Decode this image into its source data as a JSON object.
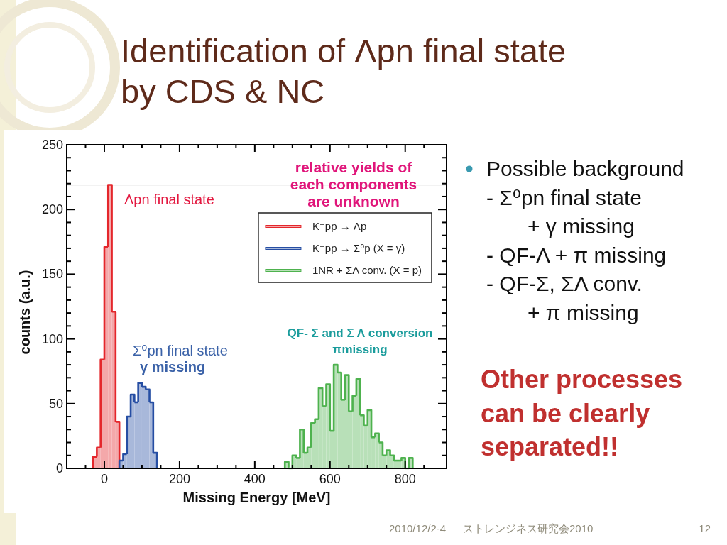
{
  "chart_data": {
    "type": "histogram",
    "title": "Identification of Λpn final state\nby CDS & NC",
    "xlabel": "Missing Energy [MeV]",
    "ylabel": "counts (a.u.)",
    "xlim": [
      -100,
      910
    ],
    "xticks": [
      {
        "value": -50,
        "label": null
      },
      0,
      {
        "value": 50,
        "label": null
      },
      {
        "value": 100,
        "label": null
      },
      {
        "value": 150,
        "label": null
      },
      200,
      {
        "value": 250,
        "label": null
      },
      {
        "value": 300,
        "label": null
      },
      {
        "value": 350,
        "label": null
      },
      400,
      {
        "value": 450,
        "label": null
      },
      {
        "value": 500,
        "label": null
      },
      {
        "value": 550,
        "label": null
      },
      600,
      {
        "value": 650,
        "label": null
      },
      {
        "value": 700,
        "label": null
      },
      {
        "value": 750,
        "label": null
      },
      800,
      {
        "value": 850,
        "label": null
      }
    ],
    "ylim": [
      0,
      250
    ],
    "yticks": [
      0,
      {
        "value": 10,
        "label": null
      },
      {
        "value": 20,
        "label": null
      },
      {
        "value": 30,
        "label": null
      },
      {
        "value": 40,
        "label": null
      },
      50,
      {
        "value": 60,
        "label": null
      },
      {
        "value": 70,
        "label": null
      },
      {
        "value": 80,
        "label": null
      },
      {
        "value": 90,
        "label": null
      },
      100,
      {
        "value": 110,
        "label": null
      },
      {
        "value": 120,
        "label": null
      },
      {
        "value": 130,
        "label": null
      },
      {
        "value": 140,
        "label": null
      },
      150,
      {
        "value": 160,
        "label": null
      },
      {
        "value": 170,
        "label": null
      },
      {
        "value": 180,
        "label": null
      },
      {
        "value": 190,
        "label": null
      },
      200,
      {
        "value": 210,
        "label": null
      },
      {
        "value": 220,
        "label": null
      },
      {
        "value": 230,
        "label": null
      },
      {
        "value": 240,
        "label": null
      },
      250
    ],
    "bins": [
      -30,
      -20,
      -10,
      0,
      10,
      20,
      30,
      40,
      50,
      60,
      70,
      80,
      90,
      100,
      110,
      120,
      130,
      140,
      480,
      490,
      500,
      510,
      520,
      530,
      540,
      550,
      560,
      570,
      580,
      590,
      600,
      610,
      620,
      630,
      640,
      650,
      660,
      670,
      680,
      690,
      700,
      710,
      720,
      730,
      740,
      750,
      760,
      770,
      780,
      790,
      800,
      810,
      820
    ],
    "series": [
      {
        "name": "K⁻pp → Λp",
        "color": "#f4a8aa",
        "values": [
          9,
          16,
          84,
          171,
          219,
          121,
          36,
          null,
          null,
          null,
          null,
          null,
          null,
          null,
          null,
          null,
          null,
          null,
          null,
          null,
          null,
          null,
          null,
          null,
          null,
          null,
          null,
          null,
          null,
          null,
          null,
          null,
          null,
          null,
          null,
          null,
          null,
          null,
          null,
          null,
          null,
          null,
          null,
          null,
          null,
          null,
          null,
          null,
          null,
          null,
          null,
          null
        ]
      },
      {
        "name": "K⁻pp → Σ⁰p (X = γ)",
        "color": "#a8b8da",
        "values": [
          null,
          null,
          null,
          null,
          null,
          null,
          null,
          6,
          11,
          40,
          57,
          51,
          66,
          63,
          61,
          51,
          12,
          null,
          null,
          null,
          null,
          null,
          null,
          null,
          null,
          null,
          null,
          null,
          null,
          null,
          null,
          null,
          null,
          null,
          null,
          null,
          null,
          null,
          null,
          null,
          null,
          null,
          null,
          null,
          null,
          null,
          null,
          null,
          null,
          null,
          null,
          null
        ]
      },
      {
        "name": "1NR + ΣΛ conv. (X = p)",
        "color": "#b8e0b8",
        "values": [
          null,
          null,
          null,
          null,
          null,
          null,
          null,
          null,
          null,
          null,
          null,
          null,
          null,
          null,
          null,
          null,
          null,
          null,
          5,
          0,
          10,
          8,
          30,
          12,
          16,
          35,
          38,
          62,
          48,
          65,
          29,
          80,
          74,
          53,
          72,
          44,
          56,
          69,
          41,
          33,
          45,
          24,
          27,
          20,
          10,
          14,
          10,
          6,
          6,
          8,
          0,
          8
        ]
      }
    ],
    "legend": "top right",
    "ref_lines": [
      {
        "axis": "y",
        "value": 219,
        "color": "#cccccc"
      }
    ],
    "annotations": [
      "Λpn final state",
      "relative yields of\neach components\nare unknown",
      "Σ⁰pn final state\nγ missing",
      "QF- Σ and Σ Λ conversion\nπmissing",
      "Possible background\n- Σ⁰pn final state\n+ γ missing\n- QF-Λ + π missing\n- QF-Σ, ΣΛ conv.\n+ π missing",
      "Other processes\ncan be clearly\nseparated!!",
      "2010/12/2-4",
      "ストレンジネス研究会2010",
      "12"
    ]
  }
}
